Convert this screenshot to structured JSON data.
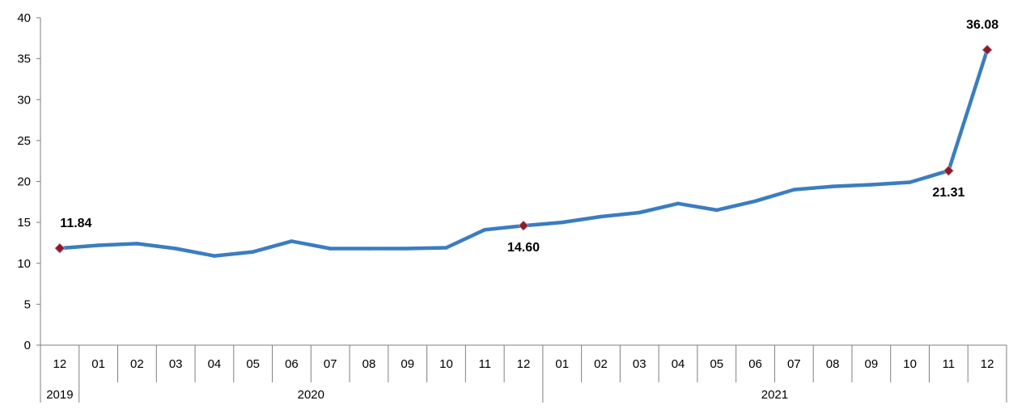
{
  "chart_data": {
    "type": "line",
    "x_months": [
      "12",
      "01",
      "02",
      "03",
      "04",
      "05",
      "06",
      "07",
      "08",
      "09",
      "10",
      "11",
      "12",
      "01",
      "02",
      "03",
      "04",
      "05",
      "06",
      "07",
      "08",
      "09",
      "10",
      "11",
      "12"
    ],
    "year_groups": [
      {
        "label": "2019",
        "count": 1
      },
      {
        "label": "2020",
        "count": 12
      },
      {
        "label": "2021",
        "count": 12
      }
    ],
    "series": [
      {
        "values": [
          11.84,
          12.2,
          12.4,
          11.8,
          10.9,
          11.4,
          12.7,
          11.8,
          11.8,
          11.8,
          11.9,
          14.1,
          14.6,
          15.0,
          15.7,
          16.2,
          17.3,
          16.5,
          17.6,
          19.0,
          19.4,
          19.6,
          19.9,
          21.31,
          36.08
        ],
        "color": "#3b7dbf",
        "marker_color": "#8b1a2b"
      }
    ],
    "yticks": [
      "0",
      "5",
      "10",
      "15",
      "20",
      "25",
      "30",
      "35",
      "40"
    ],
    "ylim": [
      0,
      40
    ],
    "grid": false,
    "annotations": [
      {
        "index": 0,
        "text": "11.84",
        "position": "above"
      },
      {
        "index": 12,
        "text": "14.60",
        "position": "below"
      },
      {
        "index": 23,
        "text": "21.31",
        "position": "below"
      },
      {
        "index": 24,
        "text": "36.08",
        "position": "above"
      }
    ]
  }
}
